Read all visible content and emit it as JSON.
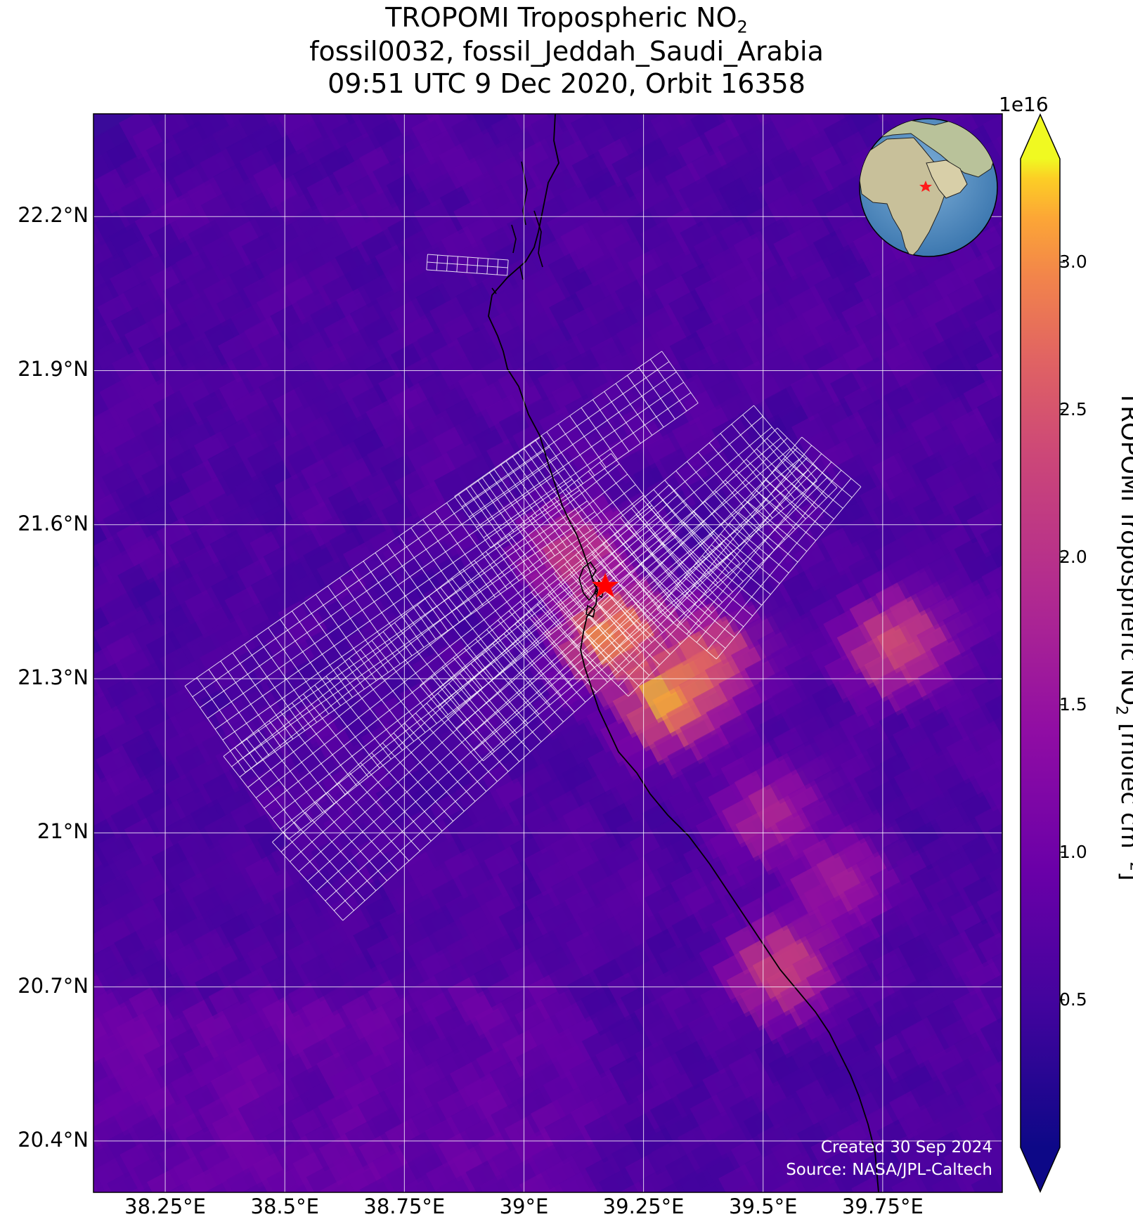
{
  "title": {
    "line1_prefix": "TROPOMI Tropospheric NO",
    "line1_sub": "2",
    "line2": "fossil0032, fossil_Jeddah_Saudi_Arabia",
    "line3": "09:51 UTC 9 Dec 2020, Orbit 16358"
  },
  "map": {
    "lat_labels": [
      "22.2°N",
      "21.9°N",
      "21.6°N",
      "21.3°N",
      "21°N",
      "20.7°N",
      "20.4°N"
    ],
    "lon_labels": [
      "38.25°E",
      "38.5°E",
      "38.75°E",
      "39°E",
      "39.25°E",
      "39.5°E",
      "39.75°E"
    ],
    "lat_values": [
      22.2,
      21.9,
      21.6,
      21.3,
      21.0,
      20.7,
      20.4
    ],
    "lon_values": [
      38.25,
      38.5,
      38.75,
      39.0,
      39.25,
      39.5,
      39.75
    ],
    "extent": {
      "lon_min": 38.1,
      "lon_max": 40.0,
      "lat_min": 20.3,
      "lat_max": 22.4
    },
    "site_marker": {
      "name": "Jeddah",
      "lon": 39.17,
      "lat": 21.48,
      "color": "#ff0000",
      "icon": "star-icon"
    },
    "inset": {
      "icon": "globe-icon",
      "marker_color": "#ff0000"
    },
    "grid": true,
    "gridline_color": "#ffffff"
  },
  "colorbar": {
    "label_prefix": "TROPOMI Tropospheric NO",
    "label_sub": "2",
    "label_units_prefix": " [molec cm",
    "label_units_sup": "−2",
    "label_units_suffix": "]",
    "exponent": "1e16",
    "ticks": [
      "0.5",
      "1.0",
      "1.5",
      "2.0",
      "2.5",
      "3.0"
    ],
    "tick_values": [
      0.5,
      1.0,
      1.5,
      2.0,
      2.5,
      3.0
    ],
    "range": [
      0,
      3.35
    ],
    "colormap": "plasma",
    "extend": "both"
  },
  "credit": {
    "line1": "Created 30 Sep 2024",
    "line2": "Source: NASA/JPL-Caltech"
  },
  "chart_data": {
    "type": "heatmap",
    "title": "TROPOMI Tropospheric NO2",
    "xlabel": "",
    "ylabel": "",
    "units": "molec cm-2 (×1e16)",
    "hotspots": [
      {
        "lon": 39.23,
        "lat": 21.4,
        "value": 3.1
      },
      {
        "lon": 39.35,
        "lat": 21.28,
        "value": 3.2
      },
      {
        "lon": 39.15,
        "lat": 21.55,
        "value": 2.2
      },
      {
        "lon": 39.42,
        "lat": 21.35,
        "value": 2.6
      },
      {
        "lon": 39.82,
        "lat": 21.38,
        "value": 2.4
      },
      {
        "lon": 39.58,
        "lat": 20.75,
        "value": 2.3
      },
      {
        "lon": 39.55,
        "lat": 21.05,
        "value": 1.8
      },
      {
        "lon": 39.7,
        "lat": 20.92,
        "value": 1.7
      }
    ],
    "background_value": 0.4
  }
}
